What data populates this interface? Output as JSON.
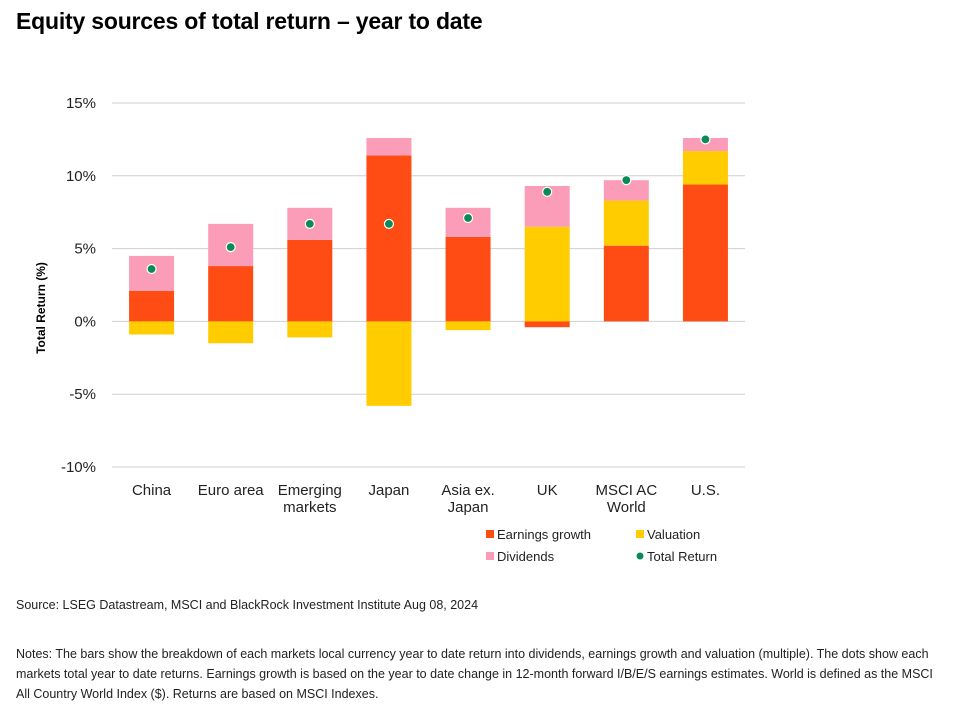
{
  "title": "Equity sources of total return – year to date",
  "chart_data": {
    "type": "bar",
    "stacked": true,
    "title": "Equity sources of total return – year to date",
    "ylabel": "Total Return (%)",
    "xlabel": "",
    "ylim": [
      -10,
      15
    ],
    "yticks": [
      15,
      10,
      5,
      0,
      -5,
      -10
    ],
    "ytick_labels": [
      "15%",
      "10%",
      "5%",
      "0%",
      "-5%",
      "-10%"
    ],
    "grid": true,
    "legend_position": "bottom-right",
    "categories": [
      [
        "China"
      ],
      [
        "Euro area"
      ],
      [
        "Emerging",
        "markets"
      ],
      [
        "Japan"
      ],
      [
        "Asia ex.",
        "Japan"
      ],
      [
        "UK"
      ],
      [
        "MSCI AC",
        "World"
      ],
      [
        "U.S."
      ]
    ],
    "series": [
      {
        "key": "earnings",
        "name": "Earnings growth",
        "color": "#ff4b14",
        "values": [
          2.1,
          3.8,
          5.6,
          11.4,
          5.8,
          -0.4,
          5.2,
          9.4
        ]
      },
      {
        "key": "valuation",
        "name": "Valuation",
        "color": "#ffcc00",
        "values": [
          -0.9,
          -1.5,
          -1.1,
          -5.8,
          -0.6,
          6.5,
          3.1,
          2.3
        ]
      },
      {
        "key": "dividends",
        "name": "Dividends",
        "color": "#fb9db8",
        "values": [
          2.4,
          2.9,
          2.2,
          1.2,
          2.0,
          2.8,
          1.4,
          0.9
        ]
      }
    ],
    "total_return": {
      "name": "Total Return",
      "color": "#0a8a55",
      "values": [
        3.6,
        5.1,
        6.7,
        6.7,
        7.1,
        8.9,
        9.7,
        12.5
      ]
    },
    "legend": [
      {
        "label": "Earnings growth",
        "shape": "square",
        "color": "#ff4b14"
      },
      {
        "label": "Valuation",
        "shape": "square",
        "color": "#ffcc00"
      },
      {
        "label": "Dividends",
        "shape": "square",
        "color": "#fb9db8"
      },
      {
        "label": "Total Return",
        "shape": "dot",
        "color": "#0a8a55"
      }
    ]
  },
  "source": "Source: LSEG Datastream, MSCI and BlackRock Investment Institute Aug 08, 2024",
  "notes": "Notes: The bars show the breakdown of each markets local currency year to date return into dividends, earnings growth and valuation (multiple).  The dots show each markets total year to date returns. Earnings growth is based on the year to date change in 12-month forward I/B/E/S earnings estimates. World is defined as the MSCI All Country World Index ($).  Returns are based on MSCI Indexes."
}
